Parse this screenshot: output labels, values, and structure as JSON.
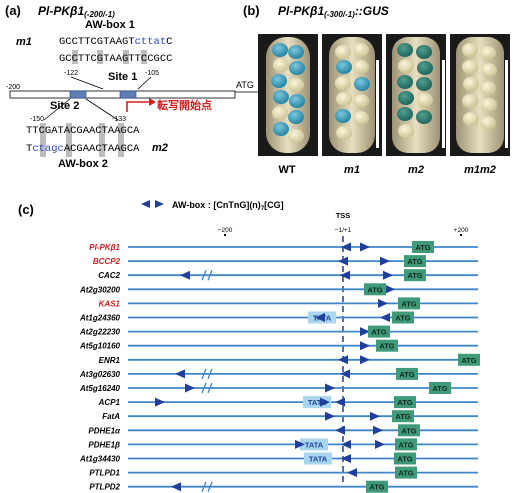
{
  "panel_a": {
    "label": "(a)",
    "title_main": "Pl-PKβ1",
    "title_sub": "(-200/-1)",
    "awbox1": "AW-box 1",
    "awbox2": "AW-box 2",
    "m1": "m1",
    "m2": "m2",
    "seq_m1_black": "GCCTTCGTAAGT",
    "seq_m1_blue": "cttat",
    "seq_m1_end": "C",
    "seq_wt1": "GCCTTCGTAAGTTCCGCC",
    "seq_wt2": "TTCGATACGAACTAAGCA",
    "seq_m2_start": "T",
    "seq_m2_blue": "ctagc",
    "seq_m2_black": "ACGAACTAAGCA",
    "pos_122": "-122",
    "pos_105": "-105",
    "pos_200": "-200",
    "pos_150": "-150",
    "pos_133": "-133",
    "site1": "Site 1",
    "site2": "Site 2",
    "atg": "ATG",
    "tss_label": "転写開始点"
  },
  "panel_b": {
    "label": "(b)",
    "title_main": "Pl-PKβ1",
    "title_sub": "(-300/-1)",
    "title_suffix": "::GUS",
    "lanes": [
      "WT",
      "m1",
      "m2",
      "m1m2"
    ]
  },
  "panel_c": {
    "label": "(c)",
    "legend_prefix": "AW-box : ",
    "legend_formula": "[CnTnG](n)",
    "legend_sub": "7",
    "legend_end": "[CG]",
    "tss": "TSS",
    "tick_minus200": "−200",
    "tick_zero": "−1/+1",
    "tick_plus200": "+200",
    "atg": "ATG",
    "tata": "TATA",
    "genes": [
      {
        "name": "PI-PKβ1",
        "highlight": true
      },
      {
        "name": "BCCP2",
        "highlight": true
      },
      {
        "name": "CAC2",
        "highlight": false
      },
      {
        "name": "At2g30200",
        "highlight": false
      },
      {
        "name": "KAS1",
        "highlight": true
      },
      {
        "name": "At1g24360",
        "highlight": false
      },
      {
        "name": "At2g22230",
        "highlight": false
      },
      {
        "name": "At5g10160",
        "highlight": false
      },
      {
        "name": "ENR1",
        "highlight": false
      },
      {
        "name": "At3g02630",
        "highlight": false
      },
      {
        "name": "At5g16240",
        "highlight": false
      },
      {
        "name": "ACP1",
        "highlight": false
      },
      {
        "name": "FatA",
        "highlight": false
      },
      {
        "name": "PDHE1α",
        "highlight": false
      },
      {
        "name": "PDHE1β",
        "highlight": false
      },
      {
        "name": "At1g34430",
        "highlight": false
      },
      {
        "name": "PTLPD1",
        "highlight": false
      },
      {
        "name": "PTLPD2",
        "highlight": false
      }
    ]
  },
  "colors": {
    "blue_line": "#3f86c6",
    "arrow": "#1f3f9b",
    "atg_box": "#3f9a78",
    "tata_box": "#a9d6ee",
    "red_text": "#d42020",
    "seq_blue": "#2a46c8"
  }
}
